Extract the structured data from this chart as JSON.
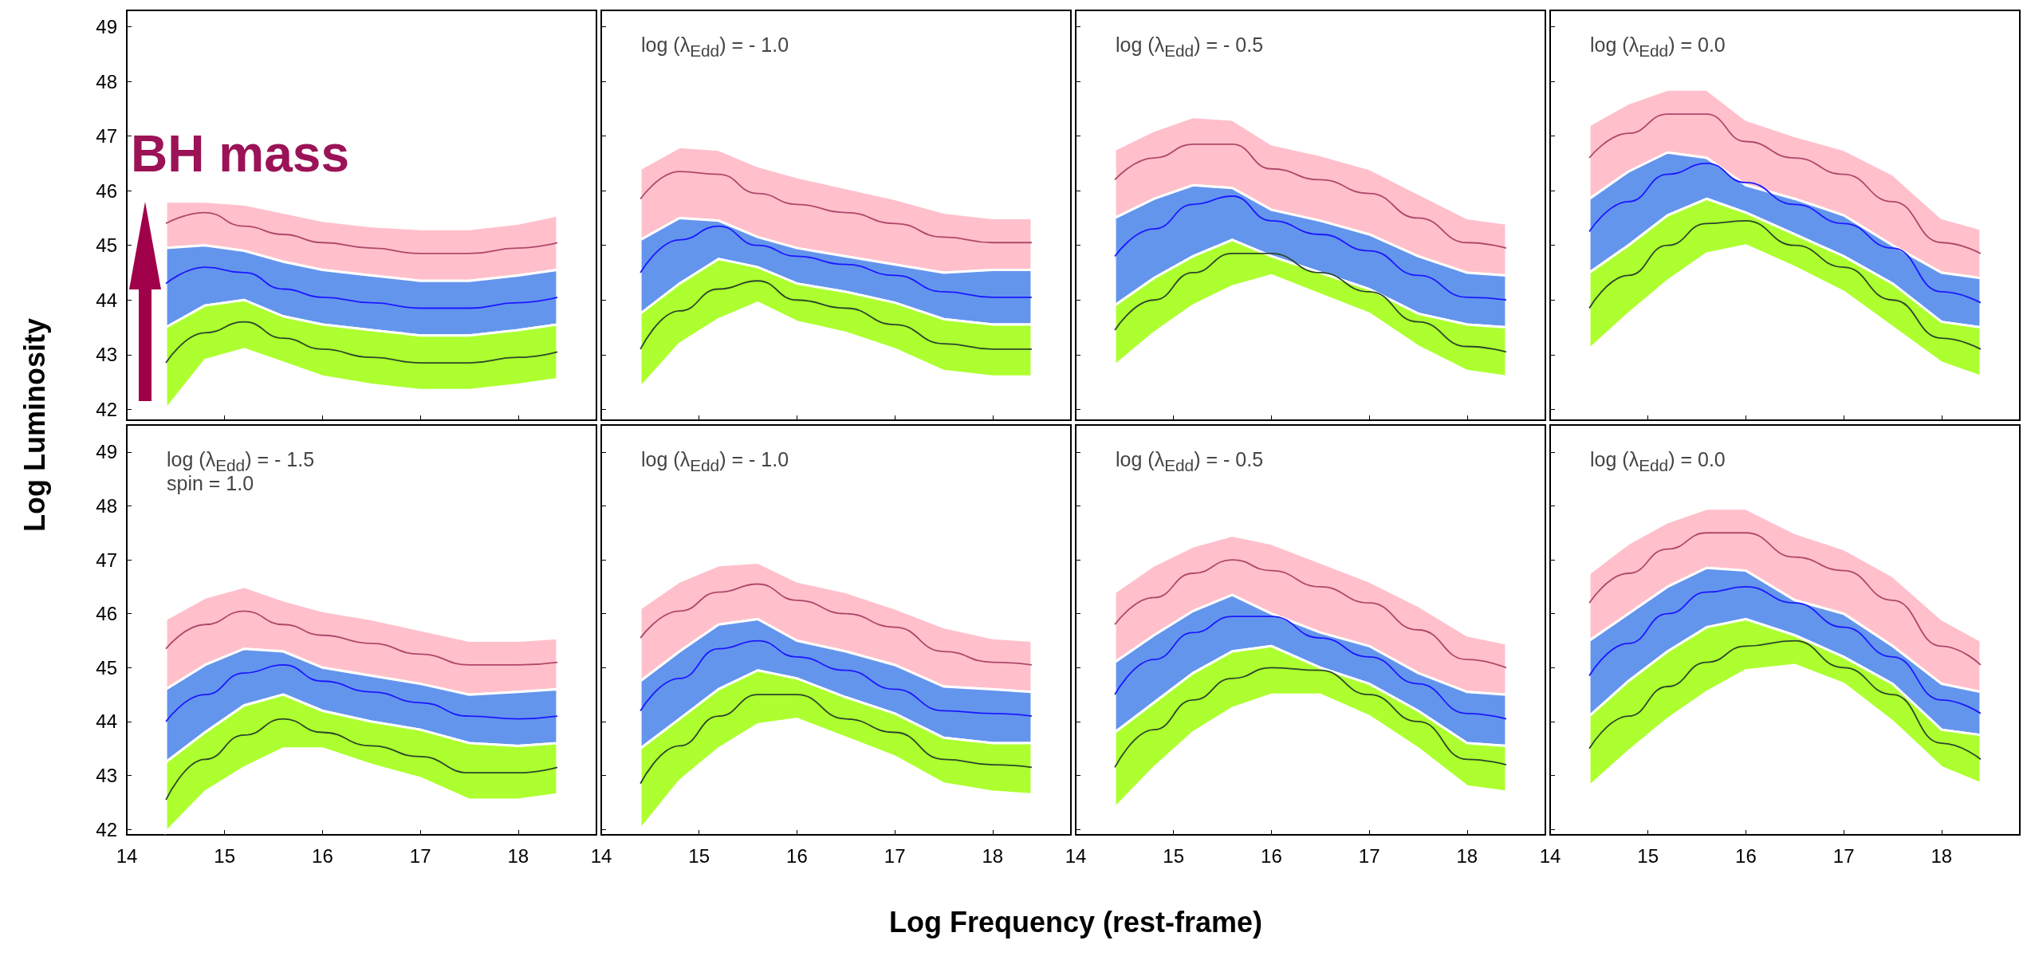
{
  "chart_data": [
    {
      "type": "line",
      "ylabel": "Log Luminosity",
      "annotations": [
        {
          "text": "BH mass",
          "x": 14.4,
          "y": 45.8
        }
      ],
      "xlim": [
        14,
        18.8
      ],
      "ylim": [
        41.8,
        49.3
      ],
      "xticks": [
        14,
        15,
        16,
        17,
        18
      ],
      "yticks": [
        42,
        43,
        44,
        45,
        46,
        47,
        48,
        49
      ],
      "tick_labels": "y",
      "x": [
        14.4,
        14.8,
        15.2,
        15.6,
        16,
        16.5,
        17,
        17.5,
        18,
        18.4
      ],
      "series": [
        {
          "color": "#ffc0cb",
          "values": [
            null,
            null,
            null,
            null,
            null,
            null,
            null,
            null,
            null,
            null
          ],
          "upper": [
            45.8,
            45.8,
            45.75,
            45.6,
            45.45,
            45.35,
            45.3,
            45.3,
            45.4,
            45.55
          ],
          "lower": [
            44.95,
            45.0,
            44.9,
            44.7,
            44.55,
            44.45,
            44.35,
            44.35,
            44.45,
            44.55
          ]
        },
        {
          "color": "#6495ed",
          "values": [
            null,
            null,
            null,
            null,
            null,
            null,
            null,
            null,
            null,
            null
          ],
          "upper": [
            44.95,
            45.0,
            44.9,
            44.7,
            44.55,
            44.45,
            44.35,
            44.35,
            44.45,
            44.55
          ],
          "lower": [
            43.5,
            43.9,
            44.0,
            43.7,
            43.55,
            43.45,
            43.35,
            43.35,
            43.45,
            43.55
          ]
        },
        {
          "color": "#adff2f",
          "values": [
            null,
            null,
            null,
            null,
            null,
            null,
            null,
            null,
            null,
            null
          ],
          "upper": [
            43.5,
            43.9,
            44.0,
            43.7,
            43.55,
            43.45,
            43.35,
            43.35,
            43.45,
            43.55
          ],
          "lower": [
            42.0,
            42.9,
            43.1,
            42.85,
            42.6,
            42.45,
            42.35,
            42.35,
            42.45,
            42.55
          ]
        },
        {
          "color": "#b0486a",
          "values": [
            45.4,
            45.6,
            45.35,
            45.2,
            45.05,
            44.95,
            44.85,
            44.85,
            44.95,
            45.05
          ]
        },
        {
          "color": "#1a1aff",
          "values": [
            44.3,
            44.6,
            44.5,
            44.2,
            44.05,
            43.95,
            43.85,
            43.85,
            43.95,
            44.05
          ]
        },
        {
          "color": "#2b472b",
          "values": [
            42.85,
            43.4,
            43.6,
            43.3,
            43.1,
            42.95,
            42.85,
            42.85,
            42.95,
            43.05
          ]
        }
      ]
    },
    {
      "type": "line",
      "annotations": [
        "log (λ$_{Edd}$) = - 1.0"
      ],
      "xlim": [
        14,
        18.8
      ],
      "ylim": [
        41.8,
        49.3
      ],
      "xticks": [
        14,
        15,
        16,
        17,
        18
      ],
      "yticks": [
        42,
        43,
        44,
        45,
        46,
        47,
        48,
        49
      ],
      "tick_labels": false,
      "x": [
        14.4,
        14.8,
        15.2,
        15.6,
        16,
        16.5,
        17,
        17.5,
        18,
        18.4
      ],
      "series": [
        {
          "color": "#ffc0cb",
          "values": [
            null,
            null,
            null,
            null,
            null,
            null,
            null,
            null,
            null,
            null
          ],
          "upper": [
            46.4,
            46.8,
            46.75,
            46.45,
            46.25,
            46.05,
            45.85,
            45.6,
            45.5,
            45.5
          ],
          "lower": [
            45.1,
            45.5,
            45.45,
            45.15,
            44.95,
            44.8,
            44.65,
            44.5,
            44.55,
            44.55
          ]
        },
        {
          "color": "#6495ed",
          "values": [
            null,
            null,
            null,
            null,
            null,
            null,
            null,
            null,
            null,
            null
          ],
          "upper": [
            45.1,
            45.5,
            45.45,
            45.15,
            44.95,
            44.8,
            44.65,
            44.5,
            44.55,
            44.55
          ],
          "lower": [
            43.75,
            44.3,
            44.75,
            44.6,
            44.3,
            44.15,
            43.95,
            43.65,
            43.55,
            43.55
          ]
        },
        {
          "color": "#adff2f",
          "values": [
            null,
            null,
            null,
            null,
            null,
            null,
            null,
            null,
            null,
            null
          ],
          "upper": [
            43.75,
            44.3,
            44.75,
            44.6,
            44.3,
            44.15,
            43.95,
            43.65,
            43.55,
            43.55
          ],
          "lower": [
            42.4,
            43.2,
            43.65,
            43.95,
            43.6,
            43.4,
            43.1,
            42.7,
            42.6,
            42.6
          ]
        },
        {
          "color": "#b0486a",
          "values": [
            45.85,
            46.35,
            46.3,
            45.95,
            45.75,
            45.6,
            45.4,
            45.15,
            45.05,
            45.05
          ]
        },
        {
          "color": "#1a1aff",
          "values": [
            44.5,
            45.1,
            45.35,
            45.0,
            44.8,
            44.65,
            44.45,
            44.15,
            44.05,
            44.05
          ]
        },
        {
          "color": "#2b472b",
          "values": [
            43.1,
            43.8,
            44.2,
            44.35,
            44.0,
            43.85,
            43.55,
            43.2,
            43.1,
            43.1
          ]
        }
      ]
    },
    {
      "type": "line",
      "annotations": [
        "log (λ$_{Edd}$) = - 0.5"
      ],
      "xlim": [
        14,
        18.8
      ],
      "ylim": [
        41.8,
        49.3
      ],
      "xticks": [
        14,
        15,
        16,
        17,
        18
      ],
      "yticks": [
        42,
        43,
        44,
        45,
        46,
        47,
        48,
        49
      ],
      "tick_labels": false,
      "x": [
        14.4,
        14.8,
        15.2,
        15.6,
        16,
        16.5,
        17,
        17.5,
        18,
        18.4
      ],
      "series": [
        {
          "color": "#ffc0cb",
          "values": [
            null,
            null,
            null,
            null,
            null,
            null,
            null,
            null,
            null,
            null
          ],
          "upper": [
            46.75,
            47.1,
            47.35,
            47.3,
            46.85,
            46.65,
            46.4,
            45.95,
            45.5,
            45.4
          ],
          "lower": [
            45.5,
            45.85,
            46.1,
            46.05,
            45.65,
            45.45,
            45.2,
            44.8,
            44.5,
            44.45
          ]
        },
        {
          "color": "#6495ed",
          "values": [
            null,
            null,
            null,
            null,
            null,
            null,
            null,
            null,
            null,
            null
          ],
          "upper": [
            45.5,
            45.85,
            46.1,
            46.05,
            45.65,
            45.45,
            45.2,
            44.8,
            44.5,
            44.45
          ],
          "lower": [
            43.9,
            44.4,
            44.8,
            45.1,
            44.8,
            44.5,
            44.2,
            43.75,
            43.55,
            43.5
          ]
        },
        {
          "color": "#adff2f",
          "values": [
            null,
            null,
            null,
            null,
            null,
            null,
            null,
            null,
            null,
            null
          ],
          "upper": [
            43.9,
            44.4,
            44.8,
            45.1,
            44.8,
            44.5,
            44.2,
            43.75,
            43.55,
            43.5
          ],
          "lower": [
            42.8,
            43.4,
            43.9,
            44.25,
            44.45,
            44.1,
            43.75,
            43.15,
            42.7,
            42.6
          ]
        },
        {
          "color": "#b0486a",
          "values": [
            46.2,
            46.6,
            46.85,
            46.85,
            46.4,
            46.2,
            45.95,
            45.5,
            45.05,
            44.95
          ]
        },
        {
          "color": "#1a1aff",
          "values": [
            44.8,
            45.3,
            45.75,
            45.9,
            45.45,
            45.2,
            44.9,
            44.45,
            44.05,
            44.0
          ]
        },
        {
          "color": "#2b472b",
          "values": [
            43.45,
            44.0,
            44.5,
            44.85,
            44.85,
            44.5,
            44.15,
            43.6,
            43.15,
            43.05
          ]
        }
      ]
    },
    {
      "type": "line",
      "annotations": [
        "log (λ$_{Edd}$) = 0.0"
      ],
      "xlim": [
        14,
        18.8
      ],
      "ylim": [
        41.8,
        49.3
      ],
      "xticks": [
        14,
        15,
        16,
        17,
        18
      ],
      "yticks": [
        42,
        43,
        44,
        45,
        46,
        47,
        48,
        49
      ],
      "tick_labels": false,
      "x": [
        14.4,
        14.8,
        15.2,
        15.6,
        16,
        16.5,
        17,
        17.5,
        18,
        18.4
      ],
      "series": [
        {
          "color": "#ffc0cb",
          "values": [
            null,
            null,
            null,
            null,
            null,
            null,
            null,
            null,
            null,
            null
          ],
          "upper": [
            47.2,
            47.6,
            47.85,
            47.85,
            47.3,
            47.0,
            46.75,
            46.3,
            45.5,
            45.3
          ],
          "lower": [
            45.85,
            46.35,
            46.7,
            46.6,
            46.1,
            45.85,
            45.55,
            45.0,
            44.5,
            44.4
          ]
        },
        {
          "color": "#6495ed",
          "values": [
            null,
            null,
            null,
            null,
            null,
            null,
            null,
            null,
            null,
            null
          ],
          "upper": [
            45.85,
            46.35,
            46.7,
            46.6,
            46.1,
            45.85,
            45.55,
            45.0,
            44.5,
            44.4
          ],
          "lower": [
            44.5,
            45.0,
            45.55,
            45.85,
            45.6,
            45.2,
            44.8,
            44.3,
            43.6,
            43.5
          ]
        },
        {
          "color": "#adff2f",
          "values": [
            null,
            null,
            null,
            null,
            null,
            null,
            null,
            null,
            null,
            null
          ],
          "upper": [
            44.5,
            45.0,
            45.55,
            45.85,
            45.6,
            45.2,
            44.8,
            44.3,
            43.6,
            43.5
          ],
          "lower": [
            43.1,
            43.75,
            44.35,
            44.85,
            45.0,
            44.6,
            44.15,
            43.5,
            42.85,
            42.6
          ]
        },
        {
          "color": "#b0486a",
          "values": [
            46.6,
            47.05,
            47.4,
            47.4,
            46.9,
            46.6,
            46.3,
            45.8,
            45.05,
            44.85
          ]
        },
        {
          "color": "#1a1aff",
          "values": [
            45.25,
            45.8,
            46.3,
            46.5,
            46.15,
            45.75,
            45.4,
            44.95,
            44.15,
            43.95
          ]
        },
        {
          "color": "#2b472b",
          "values": [
            43.85,
            44.45,
            45.0,
            45.4,
            45.45,
            45.0,
            44.6,
            44.0,
            43.3,
            43.1
          ]
        }
      ]
    },
    {
      "type": "line",
      "annotations": [
        "log (λ$_{Edd}$) = - 1.5",
        "spin = 1.0"
      ],
      "xlim": [
        14,
        18.8
      ],
      "ylim": [
        41.9,
        49.5
      ],
      "xticks": [
        14,
        15,
        16,
        17,
        18
      ],
      "yticks": [
        42,
        43,
        44,
        45,
        46,
        47,
        48,
        49
      ],
      "x": [
        14.4,
        14.8,
        15.2,
        15.6,
        16,
        16.5,
        17,
        17.5,
        18,
        18.4
      ],
      "series": [
        {
          "color": "#ffc0cb",
          "values": [
            null,
            null,
            null,
            null,
            null,
            null,
            null,
            null,
            null,
            null
          ],
          "upper": [
            45.9,
            46.3,
            46.5,
            46.25,
            46.05,
            45.9,
            45.7,
            45.5,
            45.5,
            45.55
          ],
          "lower": [
            44.6,
            45.05,
            45.35,
            45.3,
            45.0,
            44.85,
            44.7,
            44.5,
            44.55,
            44.6
          ]
        },
        {
          "color": "#6495ed",
          "values": [
            null,
            null,
            null,
            null,
            null,
            null,
            null,
            null,
            null,
            null
          ],
          "upper": [
            44.6,
            45.05,
            45.35,
            45.3,
            45.0,
            44.85,
            44.7,
            44.5,
            44.55,
            44.6
          ],
          "lower": [
            43.25,
            43.8,
            44.3,
            44.5,
            44.2,
            44.0,
            43.85,
            43.6,
            43.55,
            43.6
          ]
        },
        {
          "color": "#adff2f",
          "values": [
            null,
            null,
            null,
            null,
            null,
            null,
            null,
            null,
            null,
            null
          ],
          "upper": [
            43.25,
            43.8,
            44.3,
            44.5,
            44.2,
            44.0,
            43.85,
            43.6,
            43.55,
            43.6
          ],
          "lower": [
            41.95,
            42.7,
            43.15,
            43.5,
            43.5,
            43.2,
            42.95,
            42.55,
            42.55,
            42.65
          ]
        },
        {
          "color": "#b0486a",
          "values": [
            45.35,
            45.8,
            46.05,
            45.8,
            45.6,
            45.45,
            45.25,
            45.05,
            45.05,
            45.1
          ]
        },
        {
          "color": "#1a1aff",
          "values": [
            44.0,
            44.5,
            44.9,
            45.05,
            44.75,
            44.55,
            44.35,
            44.1,
            44.05,
            44.1
          ]
        },
        {
          "color": "#2b472b",
          "values": [
            42.55,
            43.3,
            43.75,
            44.05,
            43.8,
            43.55,
            43.35,
            43.05,
            43.05,
            43.15
          ]
        }
      ]
    },
    {
      "type": "line",
      "xlabel": "Log Frequency (rest-frame)",
      "annotations": [
        "log (λ$_{Edd}$) = - 1.0"
      ],
      "xlim": [
        14,
        18.8
      ],
      "ylim": [
        41.9,
        49.5
      ],
      "xticks": [
        14,
        15,
        16,
        17,
        18
      ],
      "yticks": [
        42,
        43,
        44,
        45,
        46,
        47,
        48,
        49
      ],
      "tick_labels": "x",
      "x": [
        14.4,
        14.8,
        15.2,
        15.6,
        16,
        16.5,
        17,
        17.5,
        18,
        18.4
      ],
      "series": [
        {
          "color": "#ffc0cb",
          "values": [
            null,
            null,
            null,
            null,
            null,
            null,
            null,
            null,
            null,
            null
          ],
          "upper": [
            46.1,
            46.6,
            46.9,
            46.95,
            46.6,
            46.4,
            46.1,
            45.75,
            45.55,
            45.5
          ],
          "lower": [
            44.75,
            45.3,
            45.8,
            45.9,
            45.5,
            45.3,
            45.05,
            44.65,
            44.6,
            44.55
          ]
        },
        {
          "color": "#6495ed",
          "values": [
            null,
            null,
            null,
            null,
            null,
            null,
            null,
            null,
            null,
            null
          ],
          "upper": [
            44.75,
            45.3,
            45.8,
            45.9,
            45.5,
            45.3,
            45.05,
            44.65,
            44.6,
            44.55
          ],
          "lower": [
            43.5,
            44.05,
            44.6,
            44.95,
            44.8,
            44.45,
            44.15,
            43.7,
            43.6,
            43.6
          ]
        },
        {
          "color": "#adff2f",
          "values": [
            null,
            null,
            null,
            null,
            null,
            null,
            null,
            null,
            null,
            null
          ],
          "upper": [
            43.5,
            44.05,
            44.6,
            44.95,
            44.8,
            44.45,
            44.15,
            43.7,
            43.6,
            43.6
          ],
          "lower": [
            42.0,
            42.9,
            43.5,
            43.95,
            44.05,
            43.7,
            43.35,
            42.85,
            42.7,
            42.65
          ]
        },
        {
          "color": "#b0486a",
          "values": [
            45.55,
            46.05,
            46.4,
            46.55,
            46.25,
            46.0,
            45.75,
            45.3,
            45.1,
            45.05
          ]
        },
        {
          "color": "#1a1aff",
          "values": [
            44.2,
            44.8,
            45.35,
            45.5,
            45.2,
            44.95,
            44.6,
            44.2,
            44.15,
            44.1
          ]
        },
        {
          "color": "#2b472b",
          "values": [
            42.85,
            43.55,
            44.1,
            44.5,
            44.5,
            44.05,
            43.8,
            43.3,
            43.2,
            43.15
          ]
        }
      ]
    },
    {
      "type": "line",
      "annotations": [
        "log (λ$_{Edd}$) = - 0.5"
      ],
      "xlim": [
        14,
        18.8
      ],
      "ylim": [
        41.9,
        49.5
      ],
      "xticks": [
        14,
        15,
        16,
        17,
        18
      ],
      "yticks": [
        42,
        43,
        44,
        45,
        46,
        47,
        48,
        49
      ],
      "tick_labels": "x",
      "x": [
        14.4,
        14.8,
        15.2,
        15.6,
        16,
        16.5,
        17,
        17.5,
        18,
        18.4
      ],
      "series": [
        {
          "color": "#ffc0cb",
          "values": [
            null,
            null,
            null,
            null,
            null,
            null,
            null,
            null,
            null,
            null
          ],
          "upper": [
            46.4,
            46.9,
            47.25,
            47.45,
            47.3,
            46.95,
            46.6,
            46.15,
            45.6,
            45.45
          ],
          "lower": [
            45.1,
            45.6,
            46.05,
            46.35,
            46.0,
            45.65,
            45.4,
            44.9,
            44.55,
            44.5
          ]
        },
        {
          "color": "#6495ed",
          "values": [
            null,
            null,
            null,
            null,
            null,
            null,
            null,
            null,
            null,
            null
          ],
          "upper": [
            45.1,
            45.6,
            46.05,
            46.35,
            46.0,
            45.65,
            45.4,
            44.9,
            44.55,
            44.5
          ],
          "lower": [
            43.8,
            44.35,
            44.9,
            45.3,
            45.4,
            45.0,
            44.7,
            44.2,
            43.6,
            43.55
          ]
        },
        {
          "color": "#adff2f",
          "values": [
            null,
            null,
            null,
            null,
            null,
            null,
            null,
            null,
            null,
            null
          ],
          "upper": [
            43.8,
            44.35,
            44.9,
            45.3,
            45.4,
            45.0,
            44.7,
            44.2,
            43.6,
            43.55
          ],
          "lower": [
            42.4,
            43.15,
            43.8,
            44.25,
            44.5,
            44.5,
            44.1,
            43.5,
            42.8,
            42.7
          ]
        },
        {
          "color": "#b0486a",
          "values": [
            45.8,
            46.3,
            46.75,
            47.0,
            46.8,
            46.5,
            46.2,
            45.7,
            45.15,
            45.0
          ]
        },
        {
          "color": "#1a1aff",
          "values": [
            44.5,
            45.15,
            45.65,
            45.95,
            45.95,
            45.55,
            45.2,
            44.7,
            44.15,
            44.05
          ]
        },
        {
          "color": "#2b472b",
          "values": [
            43.15,
            43.85,
            44.4,
            44.8,
            45.0,
            44.95,
            44.5,
            44.0,
            43.3,
            43.2
          ]
        }
      ]
    },
    {
      "type": "line",
      "annotations": [
        "log (λ$_{Edd}$) = 0.0"
      ],
      "xlim": [
        14,
        18.8
      ],
      "ylim": [
        41.9,
        49.5
      ],
      "xticks": [
        14,
        15,
        16,
        17,
        18
      ],
      "yticks": [
        42,
        43,
        44,
        45,
        46,
        47,
        48,
        49
      ],
      "tick_labels": "x",
      "x": [
        14.4,
        14.8,
        15.2,
        15.6,
        16,
        16.5,
        17,
        17.5,
        18,
        18.4
      ],
      "series": [
        {
          "color": "#ffc0cb",
          "values": [
            null,
            null,
            null,
            null,
            null,
            null,
            null,
            null,
            null,
            null
          ],
          "upper": [
            46.75,
            47.3,
            47.7,
            47.95,
            47.95,
            47.5,
            47.2,
            46.7,
            45.9,
            45.5
          ],
          "lower": [
            45.5,
            46.0,
            46.5,
            46.85,
            46.8,
            46.25,
            46.0,
            45.4,
            44.7,
            44.55
          ]
        },
        {
          "color": "#6495ed",
          "values": [
            null,
            null,
            null,
            null,
            null,
            null,
            null,
            null,
            null,
            null
          ],
          "upper": [
            45.5,
            46.0,
            46.5,
            46.85,
            46.8,
            46.25,
            46.0,
            45.4,
            44.7,
            44.55
          ],
          "lower": [
            44.1,
            44.75,
            45.3,
            45.75,
            45.9,
            45.6,
            45.2,
            44.7,
            43.85,
            43.75
          ]
        },
        {
          "color": "#adff2f",
          "values": [
            null,
            null,
            null,
            null,
            null,
            null,
            null,
            null,
            null,
            null
          ],
          "upper": [
            44.1,
            44.75,
            45.3,
            45.75,
            45.9,
            45.6,
            45.2,
            44.7,
            43.85,
            43.75
          ],
          "lower": [
            42.8,
            43.45,
            44.05,
            44.55,
            44.95,
            45.05,
            44.7,
            44.0,
            43.15,
            42.85
          ]
        },
        {
          "color": "#b0486a",
          "values": [
            46.2,
            46.75,
            47.2,
            47.5,
            47.5,
            47.05,
            46.8,
            46.25,
            45.4,
            45.05
          ]
        },
        {
          "color": "#1a1aff",
          "values": [
            44.85,
            45.45,
            46.0,
            46.4,
            46.5,
            46.2,
            45.75,
            45.2,
            44.4,
            44.15
          ]
        },
        {
          "color": "#2b472b",
          "values": [
            43.5,
            44.1,
            44.65,
            45.1,
            45.4,
            45.5,
            45.0,
            44.5,
            43.6,
            43.3
          ]
        }
      ]
    }
  ]
}
